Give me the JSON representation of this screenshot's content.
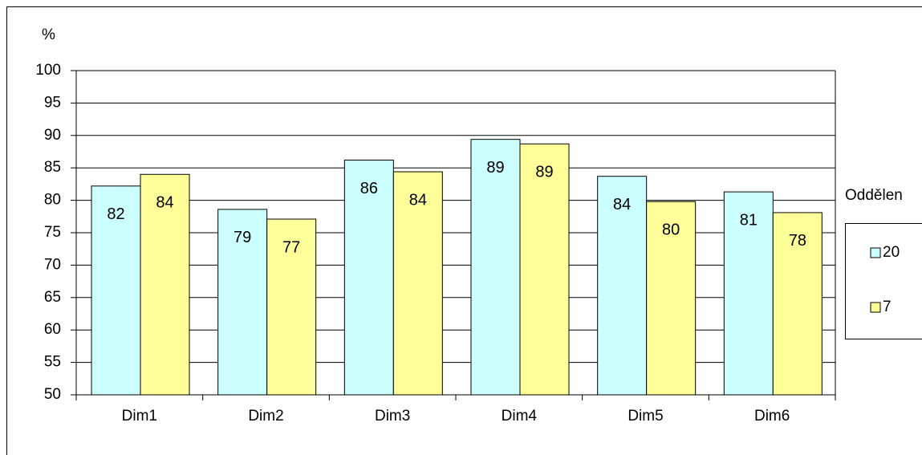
{
  "chart_data": {
    "type": "bar",
    "ylabel": "%",
    "categories": [
      "Dim1",
      "Dim2",
      "Dim3",
      "Dim4",
      "Dim5",
      "Dim6"
    ],
    "series": [
      {
        "name": "20",
        "color": "#ccffff",
        "values": [
          82.2,
          78.6,
          86.2,
          89.4,
          83.7,
          81.3
        ],
        "value_labels": [
          "82",
          "79",
          "86",
          "89",
          "84",
          "81"
        ]
      },
      {
        "name": "7",
        "color": "#ffff99",
        "values": [
          84.0,
          77.1,
          84.4,
          88.7,
          79.8,
          78.1
        ],
        "value_labels": [
          "84",
          "77",
          "84",
          "89",
          "80",
          "78"
        ]
      }
    ],
    "legend_title": "Oddělen",
    "legend": "right",
    "ylim": [
      50,
      100
    ],
    "yticks": [
      50,
      55,
      60,
      65,
      70,
      75,
      80,
      85,
      90,
      95,
      100
    ],
    "grid": true
  }
}
